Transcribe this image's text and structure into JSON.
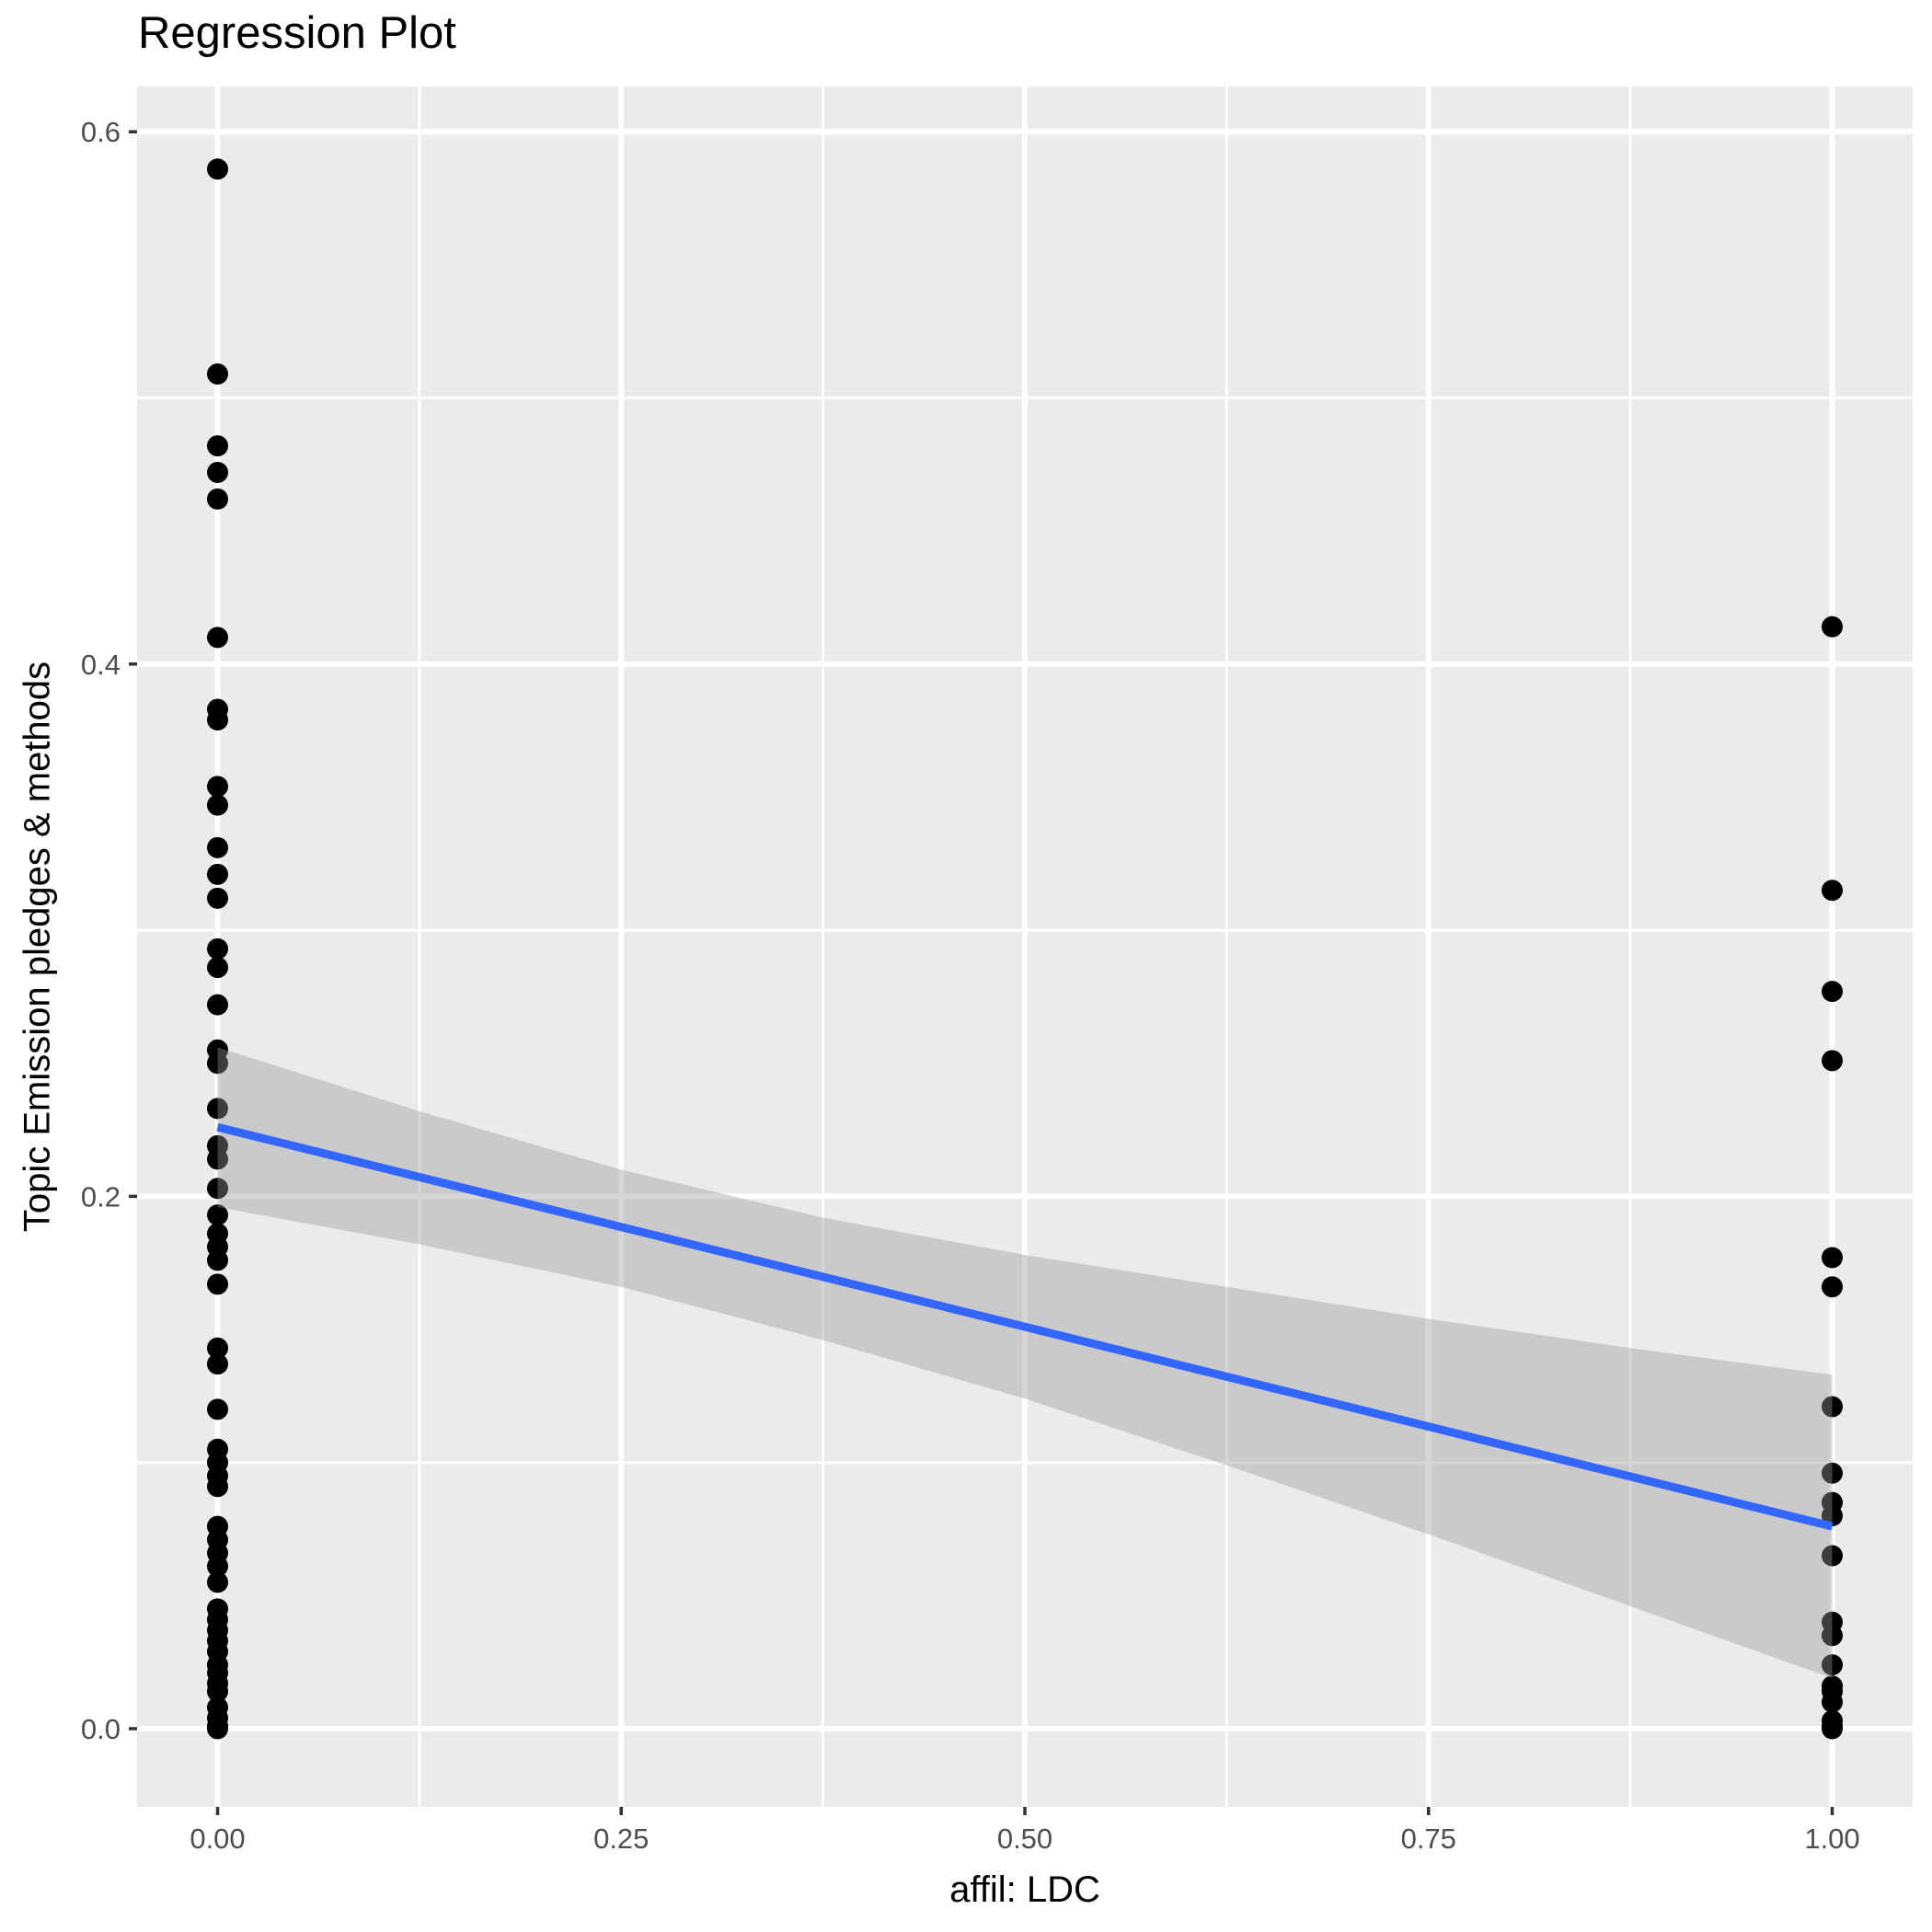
{
  "title": "Regression Plot",
  "chart_data": {
    "type": "scatter",
    "title": "Regression Plot",
    "xlabel": "affil: LDC",
    "ylabel": "Topic Emission pledges & methods",
    "x_ticks": [
      0,
      0.25,
      0.5,
      0.75,
      1
    ],
    "x_ticklabels": [
      "0.00",
      "0.25",
      "0.50",
      "0.75",
      "1.00"
    ],
    "y_ticks": [
      0,
      0.2,
      0.4,
      0.6
    ],
    "y_ticklabels": [
      "0.0",
      "0.2",
      "0.4",
      "0.6"
    ],
    "xlim": [
      -0.05,
      1.05
    ],
    "ylim": [
      -0.03,
      0.617
    ],
    "grid": "white major and minor gridlines on gray panel",
    "legend": "none",
    "series": [
      {
        "name": "observations at affil=0",
        "x": 0,
        "values": [
          0.586,
          0.509,
          0.482,
          0.472,
          0.462,
          0.41,
          0.383,
          0.379,
          0.354,
          0.347,
          0.331,
          0.321,
          0.312,
          0.293,
          0.286,
          0.272,
          0.255,
          0.25,
          0.233,
          0.219,
          0.214,
          0.203,
          0.193,
          0.186,
          0.181,
          0.176,
          0.167,
          0.143,
          0.137,
          0.12,
          0.105,
          0.1,
          0.095,
          0.091,
          0.076,
          0.071,
          0.066,
          0.061,
          0.055,
          0.045,
          0.041,
          0.037,
          0.033,
          0.029,
          0.024,
          0.021,
          0.017,
          0.014,
          0.008,
          0.004,
          0.001,
          0.0
        ]
      },
      {
        "name": "observations at affil=1",
        "x": 1,
        "values": [
          0.414,
          0.315,
          0.277,
          0.251,
          0.177,
          0.166,
          0.121,
          0.096,
          0.085,
          0.08,
          0.065,
          0.04,
          0.035,
          0.024,
          0.016,
          0.014,
          0.01,
          0.003,
          0.001,
          0.0
        ]
      }
    ],
    "regression_line": {
      "x": [
        0,
        1
      ],
      "y": [
        0.226,
        0.076
      ],
      "color": "#3366FF"
    },
    "confidence_band": {
      "x": [
        0,
        0.125,
        0.25,
        0.375,
        0.5,
        0.625,
        0.75,
        0.875,
        1
      ],
      "upper": [
        0.256,
        0.232,
        0.21,
        0.192,
        0.178,
        0.166,
        0.154,
        0.143,
        0.133
      ],
      "lower": [
        0.196,
        0.182,
        0.166,
        0.146,
        0.124,
        0.099,
        0.073,
        0.046,
        0.019
      ],
      "color": "#999999",
      "opacity": 0.4
    },
    "colors": {
      "panel_background": "#EBEBEB",
      "grid": "#FFFFFF",
      "points": "#000000",
      "line": "#3366FF",
      "band": "#999999",
      "axis_text": "#4D4D4D",
      "tick_mark": "#333333",
      "title_text": "#000000"
    }
  }
}
